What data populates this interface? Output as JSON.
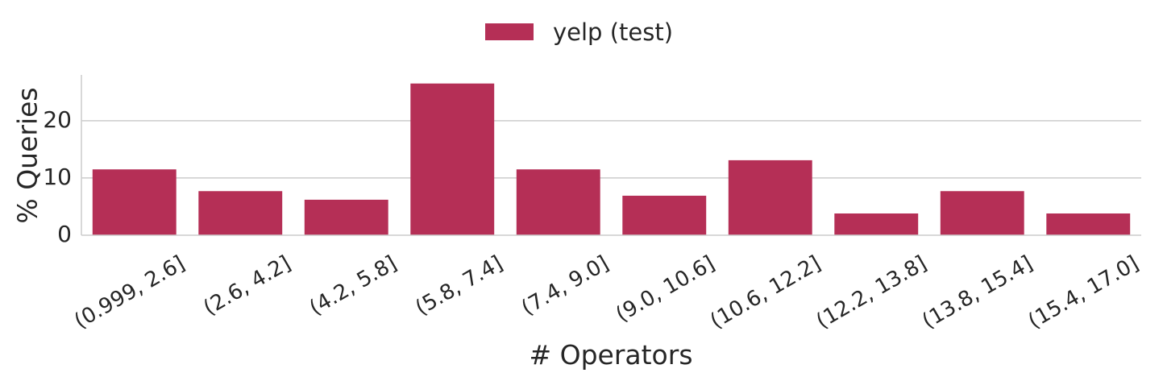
{
  "chart_data": {
    "type": "bar",
    "categories": [
      "(0.999, 2.6]",
      "(2.6, 4.2]",
      "(4.2, 5.8]",
      "(5.8, 7.4]",
      "(7.4, 9.0]",
      "(9.0, 10.6]",
      "(10.6, 12.2]",
      "(12.2, 13.8]",
      "(13.8, 15.4]",
      "(15.4, 17.0]"
    ],
    "series": [
      {
        "name": "yelp (test)",
        "values": [
          11.5,
          7.7,
          6.2,
          26.5,
          11.5,
          6.9,
          13.1,
          3.8,
          7.7,
          3.8
        ],
        "color": "#b52f56"
      }
    ],
    "xlabel": "# Operators",
    "ylabel": "% Queries",
    "ylim": [
      0,
      28
    ],
    "yticks": [
      0,
      10,
      20
    ],
    "grid": "horizontal",
    "legend_position": "top-center"
  }
}
